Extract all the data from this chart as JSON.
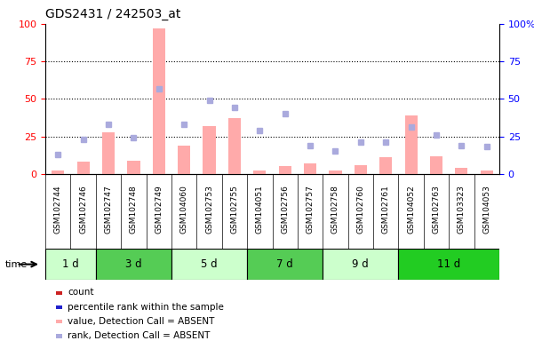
{
  "title": "GDS2431 / 242503_at",
  "samples": [
    "GSM102744",
    "GSM102746",
    "GSM102747",
    "GSM102748",
    "GSM102749",
    "GSM104060",
    "GSM102753",
    "GSM102755",
    "GSM104051",
    "GSM102756",
    "GSM102757",
    "GSM102758",
    "GSM102760",
    "GSM102761",
    "GSM104052",
    "GSM102763",
    "GSM103323",
    "GSM104053"
  ],
  "time_groups": [
    {
      "label": "1 d",
      "start": 0,
      "end": 2,
      "color": "#ccffcc"
    },
    {
      "label": "3 d",
      "start": 2,
      "end": 5,
      "color": "#55cc55"
    },
    {
      "label": "5 d",
      "start": 5,
      "end": 8,
      "color": "#ccffcc"
    },
    {
      "label": "7 d",
      "start": 8,
      "end": 11,
      "color": "#55cc55"
    },
    {
      "label": "9 d",
      "start": 11,
      "end": 14,
      "color": "#ccffcc"
    },
    {
      "label": "11 d",
      "start": 14,
      "end": 18,
      "color": "#22cc22"
    }
  ],
  "value_absent": [
    2,
    8,
    28,
    9,
    97,
    19,
    32,
    37,
    2,
    5,
    7,
    2,
    6,
    11,
    39,
    12,
    4,
    2
  ],
  "rank_absent": [
    13,
    23,
    33,
    24,
    57,
    33,
    49,
    44,
    29,
    40,
    19,
    15,
    21,
    21,
    31,
    26,
    19,
    18
  ],
  "left_ylim": [
    0,
    100
  ],
  "right_ylim": [
    0,
    100
  ],
  "left_yticks": [
    0,
    25,
    50,
    75,
    100
  ],
  "right_yticks": [
    0,
    25,
    50,
    75,
    100
  ],
  "right_ytick_labels": [
    "0",
    "25",
    "50",
    "75",
    "100%"
  ],
  "grid_lines": [
    25,
    50,
    75
  ],
  "bar_color_value_absent": "#ffaaaa",
  "bar_color_rank_absent": "#aaaadd",
  "xtick_bg": "#c8c8c8",
  "legend_items": [
    {
      "color": "#cc2222",
      "label": "count",
      "marker": "s"
    },
    {
      "color": "#2222cc",
      "label": "percentile rank within the sample",
      "marker": "s"
    },
    {
      "color": "#ffaaaa",
      "label": "value, Detection Call = ABSENT",
      "marker": "s"
    },
    {
      "color": "#aaaadd",
      "label": "rank, Detection Call = ABSENT",
      "marker": "s"
    }
  ]
}
